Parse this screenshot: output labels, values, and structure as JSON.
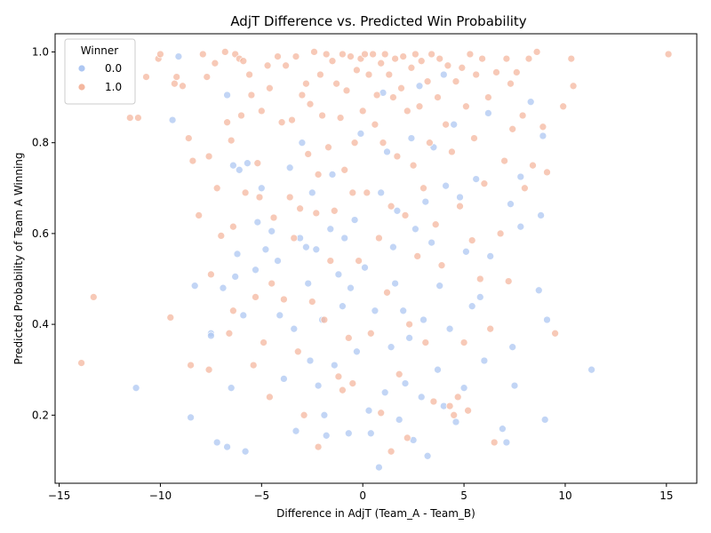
{
  "chart_data": {
    "type": "scatter",
    "title": "AdjT Difference vs. Predicted Win Probability",
    "xlabel": "Difference in AdjT (Team_A - Team_B)",
    "ylabel": "Predicted Probability of Team A Winning",
    "xlim": [
      -15.2,
      16.5
    ],
    "ylim": [
      0.05,
      1.04
    ],
    "xticks": [
      -15,
      -10,
      -5,
      0,
      5,
      10,
      15
    ],
    "xtick_labels": [
      "−15",
      "−10",
      "−5",
      "0",
      "5",
      "10",
      "15"
    ],
    "yticks": [
      0.2,
      0.4,
      0.6,
      0.8,
      1.0
    ],
    "ytick_labels": [
      "0.2",
      "0.4",
      "0.6",
      "0.8",
      "1.0"
    ],
    "legend": {
      "title": "Winner",
      "placement": "top-left",
      "entries": [
        {
          "label": "0.0",
          "color": "#aec7f2"
        },
        {
          "label": "1.0",
          "color": "#f4b79f"
        }
      ]
    },
    "series": [
      {
        "name": "0.0",
        "color": "#aec7f2",
        "points": [
          [
            -11.2,
            0.26
          ],
          [
            -9.4,
            0.85
          ],
          [
            -9.1,
            0.99
          ],
          [
            -8.5,
            0.195
          ],
          [
            -8.3,
            0.485
          ],
          [
            -7.5,
            0.38
          ],
          [
            -7.5,
            0.375
          ],
          [
            -7.2,
            0.14
          ],
          [
            -6.9,
            0.48
          ],
          [
            -6.7,
            0.905
          ],
          [
            -6.7,
            0.13
          ],
          [
            -6.5,
            0.26
          ],
          [
            -6.4,
            0.75
          ],
          [
            -6.3,
            0.505
          ],
          [
            -6.2,
            0.555
          ],
          [
            -6.1,
            0.74
          ],
          [
            -5.9,
            0.42
          ],
          [
            -5.8,
            0.12
          ],
          [
            -5.7,
            0.755
          ],
          [
            -5.3,
            0.52
          ],
          [
            -5.2,
            0.625
          ],
          [
            -5.0,
            0.7
          ],
          [
            -4.8,
            0.565
          ],
          [
            -4.5,
            0.605
          ],
          [
            -4.2,
            0.54
          ],
          [
            -4.1,
            0.42
          ],
          [
            -3.9,
            0.28
          ],
          [
            -3.6,
            0.745
          ],
          [
            -3.4,
            0.39
          ],
          [
            -3.3,
            0.165
          ],
          [
            -3.1,
            0.59
          ],
          [
            -3.0,
            0.8
          ],
          [
            -2.8,
            0.57
          ],
          [
            -2.6,
            0.32
          ],
          [
            -2.5,
            0.69
          ],
          [
            -2.3,
            0.565
          ],
          [
            -2.2,
            0.265
          ],
          [
            -2.0,
            0.41
          ],
          [
            -1.8,
            0.155
          ],
          [
            -1.6,
            0.61
          ],
          [
            -1.5,
            0.73
          ],
          [
            -1.4,
            0.31
          ],
          [
            -1.2,
            0.51
          ],
          [
            -1.0,
            0.44
          ],
          [
            -0.9,
            0.59
          ],
          [
            -0.7,
            0.16
          ],
          [
            -0.6,
            0.48
          ],
          [
            -0.4,
            0.63
          ],
          [
            -0.3,
            0.34
          ],
          [
            -0.1,
            0.82
          ],
          [
            0.1,
            0.525
          ],
          [
            0.3,
            0.21
          ],
          [
            0.4,
            0.16
          ],
          [
            0.6,
            0.43
          ],
          [
            0.8,
            0.085
          ],
          [
            0.9,
            0.69
          ],
          [
            1.1,
            0.25
          ],
          [
            1.2,
            0.78
          ],
          [
            1.4,
            0.35
          ],
          [
            1.5,
            0.57
          ],
          [
            1.6,
            0.49
          ],
          [
            1.7,
            0.65
          ],
          [
            1.8,
            0.19
          ],
          [
            2.0,
            0.43
          ],
          [
            2.1,
            0.27
          ],
          [
            2.3,
            0.37
          ],
          [
            2.4,
            0.81
          ],
          [
            2.5,
            0.145
          ],
          [
            2.6,
            0.61
          ],
          [
            2.8,
            0.925
          ],
          [
            2.9,
            0.24
          ],
          [
            3.0,
            0.41
          ],
          [
            3.1,
            0.67
          ],
          [
            3.2,
            0.11
          ],
          [
            3.4,
            0.58
          ],
          [
            3.5,
            0.79
          ],
          [
            3.7,
            0.3
          ],
          [
            3.8,
            0.485
          ],
          [
            4.0,
            0.22
          ],
          [
            4.1,
            0.705
          ],
          [
            4.3,
            0.39
          ],
          [
            4.5,
            0.84
          ],
          [
            4.6,
            0.185
          ],
          [
            4.8,
            0.68
          ],
          [
            5.0,
            0.26
          ],
          [
            5.1,
            0.56
          ],
          [
            5.4,
            0.44
          ],
          [
            5.6,
            0.72
          ],
          [
            5.8,
            0.46
          ],
          [
            6.0,
            0.32
          ],
          [
            6.2,
            0.865
          ],
          [
            6.3,
            0.55
          ],
          [
            6.9,
            0.17
          ],
          [
            7.1,
            0.14
          ],
          [
            7.3,
            0.665
          ],
          [
            7.4,
            0.35
          ],
          [
            7.5,
            0.265
          ],
          [
            7.8,
            0.725
          ],
          [
            7.8,
            0.615
          ],
          [
            8.3,
            0.89
          ],
          [
            8.7,
            0.475
          ],
          [
            8.8,
            0.64
          ],
          [
            8.9,
            0.815
          ],
          [
            9.0,
            0.19
          ],
          [
            9.1,
            0.41
          ],
          [
            11.3,
            0.3
          ],
          [
            -2.7,
            0.49
          ],
          [
            -1.9,
            0.2
          ],
          [
            1.0,
            0.91
          ],
          [
            4.0,
            0.95
          ]
        ]
      },
      {
        "name": "1.0",
        "color": "#f4b79f",
        "points": [
          [
            -13.9,
            0.315
          ],
          [
            -13.3,
            0.46
          ],
          [
            -11.5,
            0.855
          ],
          [
            -11.1,
            0.855
          ],
          [
            -10.7,
            0.945
          ],
          [
            -10.1,
            0.985
          ],
          [
            -10.0,
            0.995
          ],
          [
            -9.5,
            0.415
          ],
          [
            -9.3,
            0.93
          ],
          [
            -9.2,
            0.945
          ],
          [
            -8.9,
            0.925
          ],
          [
            -8.6,
            0.81
          ],
          [
            -8.5,
            0.31
          ],
          [
            -8.4,
            0.76
          ],
          [
            -8.1,
            0.64
          ],
          [
            -7.9,
            0.995
          ],
          [
            -7.7,
            0.945
          ],
          [
            -7.6,
            0.77
          ],
          [
            -7.6,
            0.3
          ],
          [
            -7.5,
            0.51
          ],
          [
            -7.3,
            0.975
          ],
          [
            -7.2,
            0.7
          ],
          [
            -7.0,
            0.595
          ],
          [
            -6.8,
            1.0
          ],
          [
            -6.7,
            0.845
          ],
          [
            -6.6,
            0.38
          ],
          [
            -6.5,
            0.805
          ],
          [
            -6.4,
            0.615
          ],
          [
            -6.4,
            0.43
          ],
          [
            -6.3,
            0.995
          ],
          [
            -6.1,
            0.985
          ],
          [
            -6.0,
            0.86
          ],
          [
            -5.9,
            0.98
          ],
          [
            -5.8,
            0.69
          ],
          [
            -5.6,
            0.95
          ],
          [
            -5.5,
            0.905
          ],
          [
            -5.4,
            0.31
          ],
          [
            -5.3,
            0.46
          ],
          [
            -5.2,
            0.755
          ],
          [
            -5.0,
            0.87
          ],
          [
            -4.9,
            0.36
          ],
          [
            -4.7,
            0.97
          ],
          [
            -4.6,
            0.92
          ],
          [
            -4.5,
            0.49
          ],
          [
            -4.4,
            0.635
          ],
          [
            -4.2,
            0.99
          ],
          [
            -4.0,
            0.845
          ],
          [
            -3.9,
            0.455
          ],
          [
            -3.8,
            0.97
          ],
          [
            -3.6,
            0.68
          ],
          [
            -3.5,
            0.85
          ],
          [
            -3.3,
            0.99
          ],
          [
            -3.2,
            0.34
          ],
          [
            -3.1,
            0.655
          ],
          [
            -3.0,
            0.905
          ],
          [
            -2.9,
            0.2
          ],
          [
            -2.8,
            0.93
          ],
          [
            -2.7,
            0.775
          ],
          [
            -2.6,
            0.885
          ],
          [
            -2.5,
            0.45
          ],
          [
            -2.4,
            1.0
          ],
          [
            -2.3,
            0.645
          ],
          [
            -2.2,
            0.73
          ],
          [
            -2.1,
            0.95
          ],
          [
            -2.0,
            0.86
          ],
          [
            -1.9,
            0.41
          ],
          [
            -1.8,
            0.995
          ],
          [
            -1.7,
            0.79
          ],
          [
            -1.6,
            0.54
          ],
          [
            -1.5,
            0.98
          ],
          [
            -1.4,
            0.65
          ],
          [
            -1.3,
            0.93
          ],
          [
            -1.2,
            0.285
          ],
          [
            -1.1,
            0.855
          ],
          [
            -1.0,
            0.995
          ],
          [
            -0.9,
            0.74
          ],
          [
            -0.8,
            0.915
          ],
          [
            -0.7,
            0.37
          ],
          [
            -0.6,
            0.99
          ],
          [
            -0.5,
            0.69
          ],
          [
            -0.4,
            0.8
          ],
          [
            -0.3,
            0.96
          ],
          [
            -0.2,
            0.54
          ],
          [
            -0.1,
            0.985
          ],
          [
            0.0,
            0.87
          ],
          [
            0.1,
            0.995
          ],
          [
            0.2,
            0.69
          ],
          [
            0.3,
            0.95
          ],
          [
            0.4,
            0.38
          ],
          [
            0.5,
            0.995
          ],
          [
            0.6,
            0.84
          ],
          [
            0.7,
            0.905
          ],
          [
            0.8,
            0.59
          ],
          [
            0.9,
            0.975
          ],
          [
            1.0,
            0.8
          ],
          [
            1.1,
            0.995
          ],
          [
            1.2,
            0.47
          ],
          [
            1.3,
            0.95
          ],
          [
            1.4,
            0.66
          ],
          [
            1.5,
            0.9
          ],
          [
            1.6,
            0.985
          ],
          [
            1.7,
            0.77
          ],
          [
            1.8,
            0.29
          ],
          [
            1.9,
            0.92
          ],
          [
            2.0,
            0.99
          ],
          [
            2.1,
            0.64
          ],
          [
            2.2,
            0.87
          ],
          [
            2.3,
            0.4
          ],
          [
            2.4,
            0.965
          ],
          [
            2.5,
            0.75
          ],
          [
            2.6,
            0.995
          ],
          [
            2.7,
            0.55
          ],
          [
            2.8,
            0.88
          ],
          [
            2.9,
            0.98
          ],
          [
            3.0,
            0.7
          ],
          [
            3.1,
            0.36
          ],
          [
            3.2,
            0.935
          ],
          [
            3.3,
            0.8
          ],
          [
            3.4,
            0.995
          ],
          [
            3.6,
            0.62
          ],
          [
            3.7,
            0.9
          ],
          [
            3.8,
            0.985
          ],
          [
            3.9,
            0.53
          ],
          [
            4.1,
            0.84
          ],
          [
            4.2,
            0.97
          ],
          [
            4.3,
            0.22
          ],
          [
            4.4,
            0.78
          ],
          [
            4.6,
            0.935
          ],
          [
            4.7,
            0.24
          ],
          [
            4.8,
            0.66
          ],
          [
            4.9,
            0.965
          ],
          [
            5.0,
            0.36
          ],
          [
            5.1,
            0.88
          ],
          [
            5.3,
            0.995
          ],
          [
            5.4,
            0.585
          ],
          [
            5.5,
            0.81
          ],
          [
            5.6,
            0.95
          ],
          [
            5.8,
            0.5
          ],
          [
            5.9,
            0.985
          ],
          [
            6.0,
            0.71
          ],
          [
            6.2,
            0.9
          ],
          [
            6.3,
            0.39
          ],
          [
            6.5,
            0.14
          ],
          [
            6.6,
            0.955
          ],
          [
            6.8,
            0.6
          ],
          [
            7.0,
            0.76
          ],
          [
            7.1,
            0.985
          ],
          [
            7.2,
            0.495
          ],
          [
            7.3,
            0.93
          ],
          [
            7.4,
            0.83
          ],
          [
            7.6,
            0.955
          ],
          [
            7.9,
            0.86
          ],
          [
            8.0,
            0.7
          ],
          [
            8.2,
            0.985
          ],
          [
            8.4,
            0.75
          ],
          [
            8.6,
            1.0
          ],
          [
            8.9,
            0.835
          ],
          [
            9.1,
            0.735
          ],
          [
            9.5,
            0.38
          ],
          [
            9.9,
            0.88
          ],
          [
            10.3,
            0.985
          ],
          [
            10.4,
            0.925
          ],
          [
            15.1,
            0.995
          ],
          [
            -5.1,
            0.68
          ],
          [
            -3.4,
            0.59
          ],
          [
            -0.5,
            0.27
          ],
          [
            0.9,
            0.205
          ],
          [
            2.2,
            0.15
          ],
          [
            4.5,
            0.2
          ],
          [
            5.2,
            0.21
          ],
          [
            -1.0,
            0.255
          ],
          [
            -2.2,
            0.13
          ],
          [
            1.4,
            0.12
          ],
          [
            3.5,
            0.23
          ],
          [
            -4.6,
            0.24
          ]
        ]
      }
    ]
  }
}
